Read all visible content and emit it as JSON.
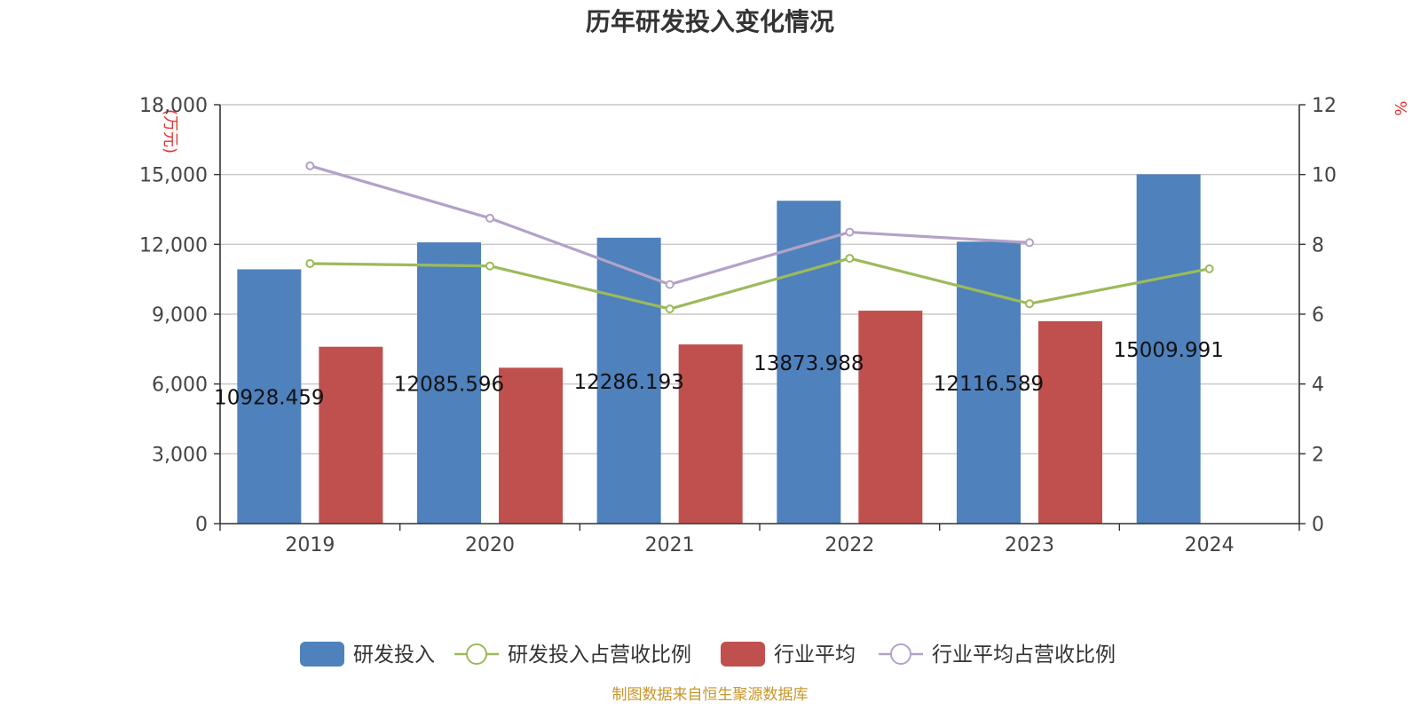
{
  "chart_data": {
    "type": "bar",
    "title": "历年研发投入变化情况",
    "categories": [
      "2019",
      "2020",
      "2021",
      "2022",
      "2023",
      "2024"
    ],
    "left_axis": {
      "unit": "(万元)",
      "ylim": [
        0,
        18000
      ],
      "ticks": [
        "0",
        "3,000",
        "6,000",
        "9,000",
        "12,000",
        "15,000",
        "18,000"
      ]
    },
    "right_axis": {
      "unit": "%",
      "ylim": [
        0,
        12
      ],
      "ticks": [
        "0",
        "2",
        "4",
        "6",
        "8",
        "10",
        "12"
      ]
    },
    "series": [
      {
        "name": "研发投入",
        "kind": "bar",
        "axis": "left",
        "color": "#4f81bd",
        "values": [
          10928.459,
          12085.596,
          12286.193,
          13873.988,
          12116.589,
          15009.991
        ],
        "labels": [
          "10928.459",
          "12085.596",
          "12286.193",
          "13873.988",
          "12116.589",
          "15009.991"
        ]
      },
      {
        "name": "研发投入占营收比例",
        "kind": "line",
        "axis": "right",
        "color": "#9bbb59",
        "values": [
          7.45,
          7.38,
          6.15,
          7.6,
          6.3,
          7.3
        ]
      },
      {
        "name": "行业平均",
        "kind": "bar",
        "axis": "left",
        "color": "#c0504d",
        "values": [
          7600,
          6700,
          7700,
          9150,
          8700,
          null
        ]
      },
      {
        "name": "行业平均占营收比例",
        "kind": "line",
        "axis": "right",
        "color": "#b3a2c7",
        "values": [
          10.25,
          8.75,
          6.85,
          8.35,
          8.05,
          null
        ]
      }
    ],
    "grid": true,
    "legend_position": "bottom"
  },
  "source": "制图数据来自恒生聚源数据库"
}
